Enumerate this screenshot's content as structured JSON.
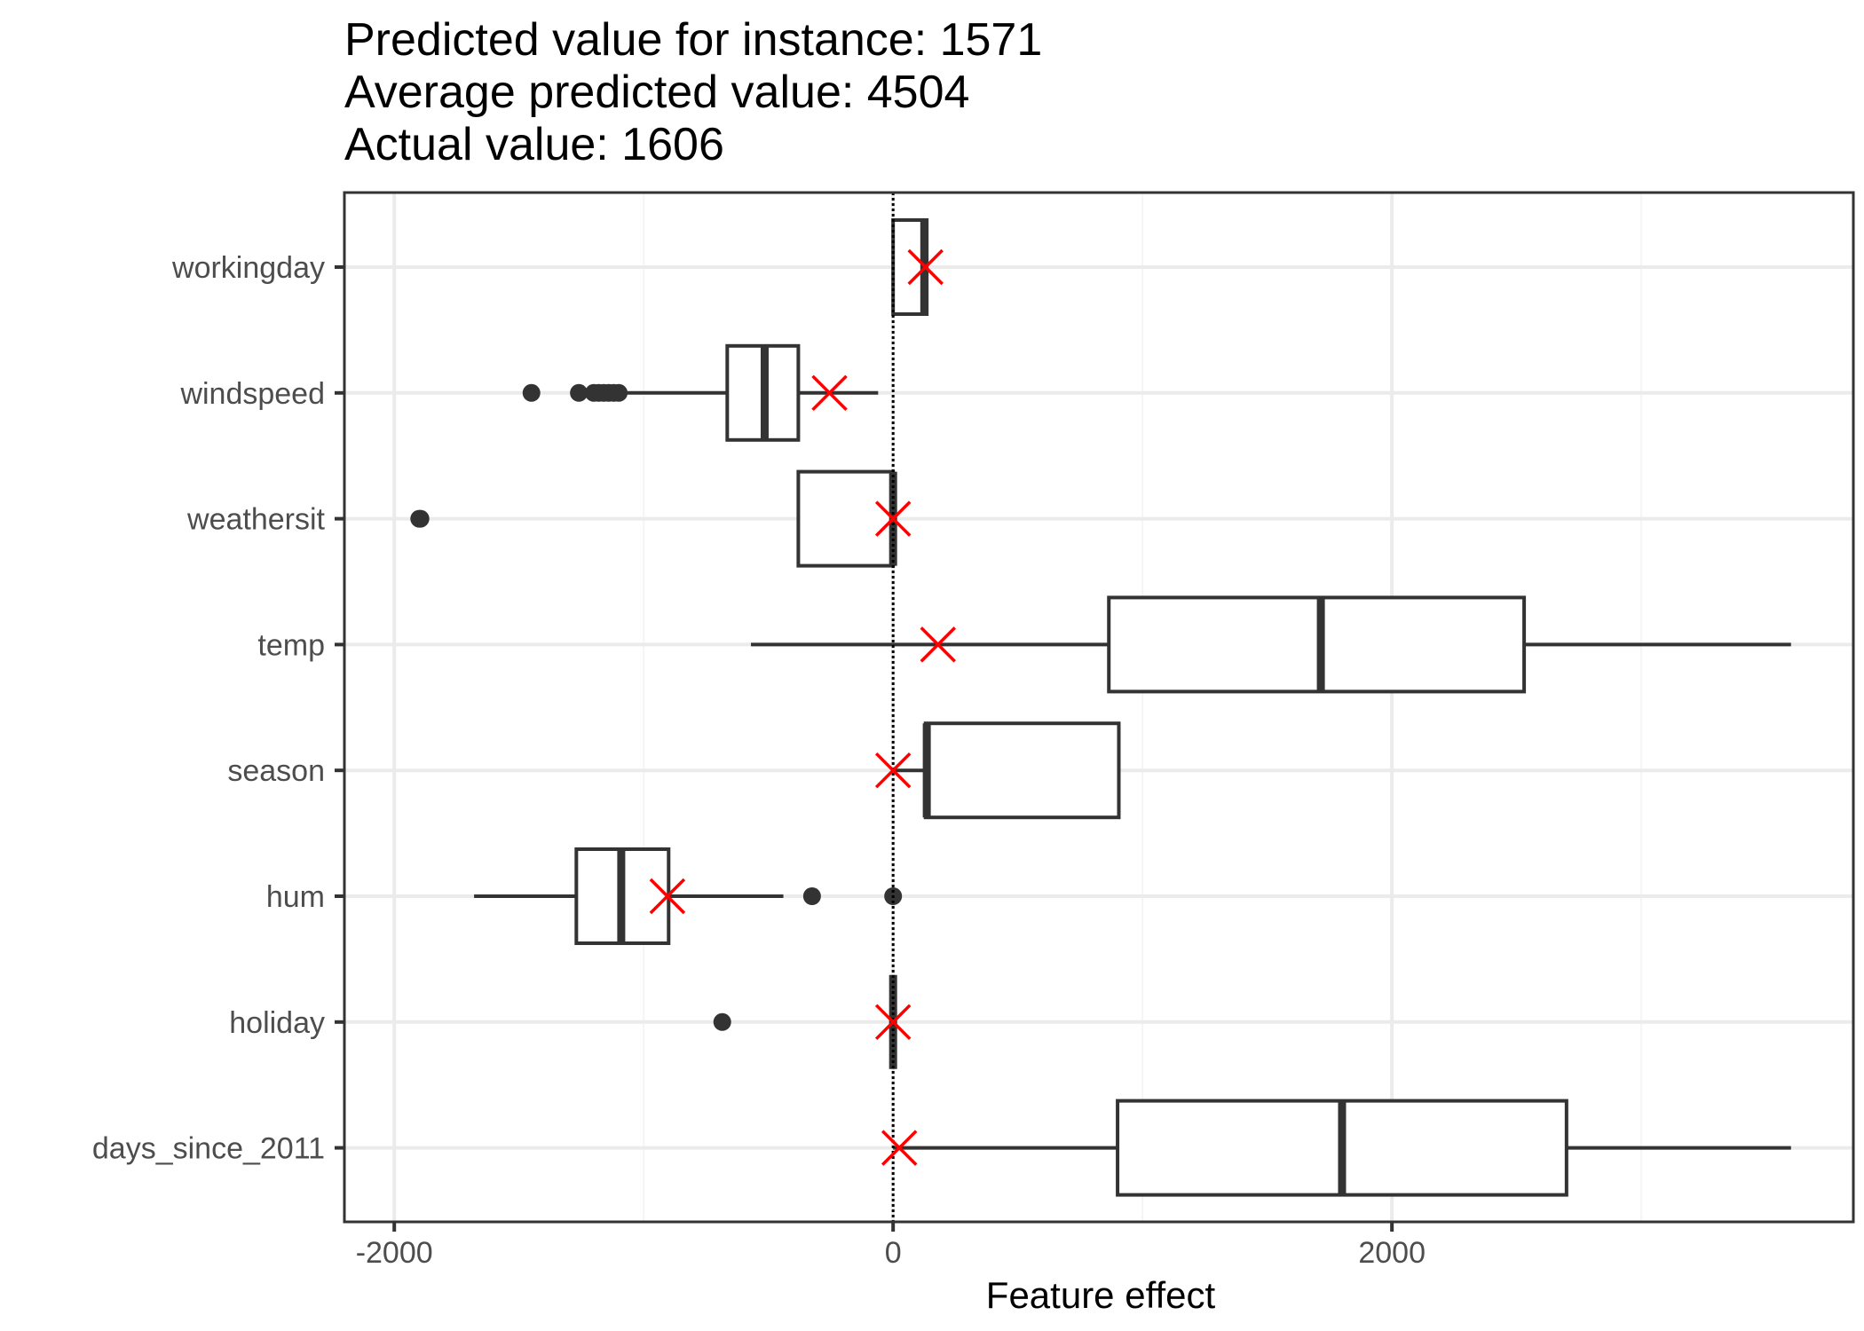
{
  "chart_data": {
    "type": "boxplot",
    "title_lines": [
      "Predicted value for instance: 1571",
      "Average predicted value: 4504",
      "Actual value: 1606"
    ],
    "xlabel": "Feature effect",
    "ylabel": "",
    "xlim": [
      -2200,
      3850
    ],
    "xticks": [
      -2000,
      0,
      2000
    ],
    "xtick_labels": [
      "-2000",
      "0",
      "2000"
    ],
    "minor_xticks": [
      -1000,
      1000,
      3000
    ],
    "grid": true,
    "reference_line": 0,
    "categories": [
      "workingday",
      "windspeed",
      "weathersit",
      "temp",
      "season",
      "hum",
      "holiday",
      "days_since_2011"
    ],
    "series": [
      {
        "name": "workingday",
        "whisker_low": 0,
        "q1": 0,
        "median": 125,
        "q3": 135,
        "whisker_high": 135,
        "outliers": [],
        "instance_effect": 130
      },
      {
        "name": "windspeed",
        "whisker_low": -1100,
        "q1": -665,
        "median": -515,
        "q3": -380,
        "whisker_high": -60,
        "outliers": [
          -1450,
          -1260,
          -1200,
          -1180,
          -1160,
          -1140,
          -1120,
          -1100
        ],
        "instance_effect": -255
      },
      {
        "name": "weathersit",
        "whisker_low": -380,
        "q1": -380,
        "median": 0,
        "q3": 0,
        "whisker_high": 0,
        "outliers": [
          -1900,
          -1895
        ],
        "instance_effect": 0
      },
      {
        "name": "temp",
        "whisker_low": -570,
        "q1": 865,
        "median": 1715,
        "q3": 2530,
        "whisker_high": 3600,
        "outliers": [],
        "instance_effect": 180
      },
      {
        "name": "season",
        "whisker_low": 0,
        "q1": 130,
        "median": 135,
        "q3": 905,
        "whisker_high": 905,
        "outliers": [],
        "instance_effect": 0
      },
      {
        "name": "hum",
        "whisker_low": -1680,
        "q1": -1270,
        "median": -1090,
        "q3": -900,
        "whisker_high": -440,
        "outliers": [
          -325,
          0
        ],
        "instance_effect": -905
      },
      {
        "name": "holiday",
        "whisker_low": 0,
        "q1": 0,
        "median": 0,
        "q3": 0,
        "whisker_high": 0,
        "outliers": [
          -685
        ],
        "instance_effect": 0
      },
      {
        "name": "days_since_2011",
        "whisker_low": 0,
        "q1": 900,
        "median": 1800,
        "q3": 2700,
        "whisker_high": 3600,
        "outliers": [],
        "instance_effect": 25
      }
    ],
    "colors": {
      "box_stroke": "#333333",
      "instance_marker": "#ff0000",
      "panel_border": "#333333",
      "grid_major": "#ebebeb",
      "grid_minor": "#f5f5f5",
      "reference_line": "#000000"
    }
  }
}
